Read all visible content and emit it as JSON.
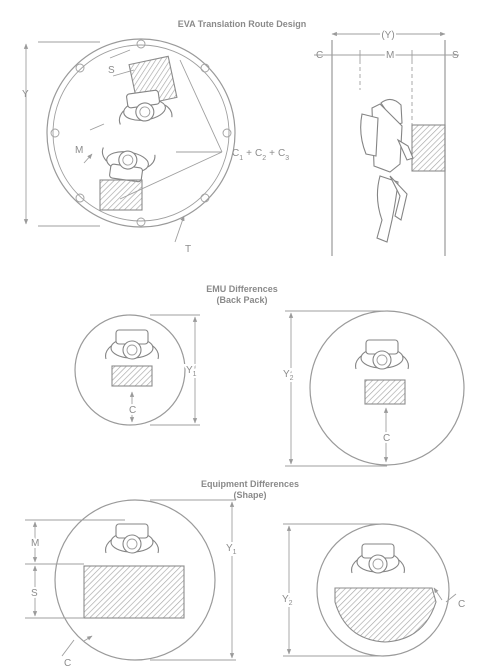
{
  "titles": {
    "top": "EVA Translation Route Design",
    "emu_line1": "EMU Differences",
    "emu_line2": "(Back Pack)",
    "equip_line1": "Equipment Differences",
    "equip_line2": "(Shape)"
  },
  "labels": {
    "Y": "Y",
    "S": "S",
    "M": "M",
    "C": "C",
    "T": "T",
    "Y_paren": "(Y)",
    "C1": "C",
    "sub1": "1",
    "plus": "+",
    "C2": "C",
    "sub2": "2",
    "C3": "C",
    "sub3": "3"
  },
  "colors": {
    "line": "#9a9a9a",
    "text": "#8c8c8c",
    "hatch": "#a6a6a6"
  }
}
